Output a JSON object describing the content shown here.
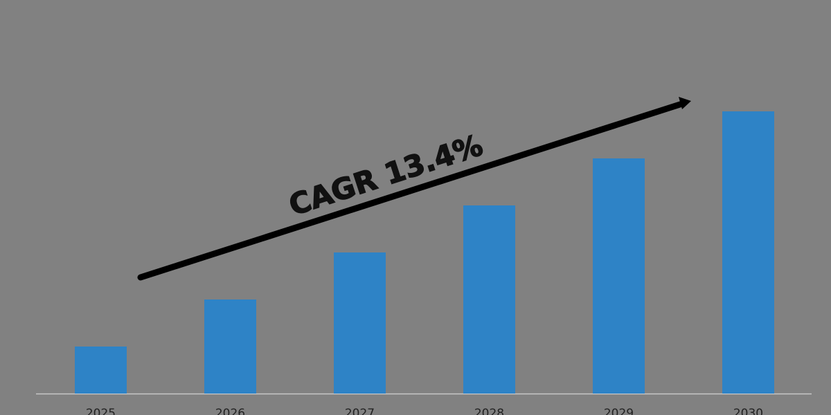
{
  "chart_data": {
    "type": "bar",
    "annotation": "CAGR 13.4%",
    "categories": [
      "2025",
      "2026",
      "2027",
      "2028",
      "2029",
      "2030"
    ],
    "values": [
      1,
      2,
      3,
      4,
      5,
      6
    ],
    "color": "#2e83c6",
    "ylim": [
      0,
      6
    ]
  }
}
